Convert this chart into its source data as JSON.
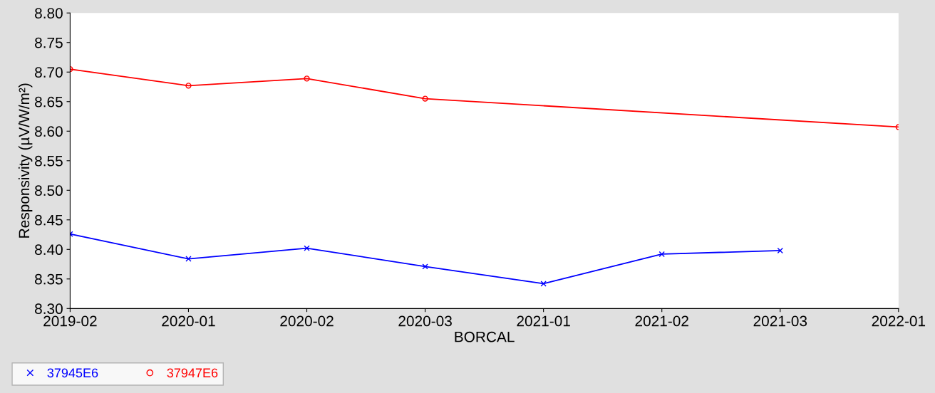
{
  "chart_data": {
    "type": "line",
    "xlabel": "BORCAL",
    "ylabel": "Responsivity (µV/W/m²)",
    "categories": [
      "2019-02",
      "2020-01",
      "2020-02",
      "2020-03",
      "2021-01",
      "2021-02",
      "2021-03",
      "2022-01"
    ],
    "series": [
      {
        "name": "37945E6",
        "color": "#0000ff",
        "marker": "cross",
        "values": [
          8.426,
          8.384,
          8.402,
          8.371,
          8.342,
          8.392,
          8.398,
          null
        ]
      },
      {
        "name": "37947E6",
        "color": "#ff0000",
        "marker": "circle",
        "values": [
          8.705,
          8.677,
          8.689,
          8.655,
          null,
          null,
          null,
          8.607
        ]
      }
    ],
    "ylim": [
      8.3,
      8.8
    ],
    "yticks": [
      {
        "value": 8.3,
        "label": "8.30"
      },
      {
        "value": 8.35,
        "label": "8.35"
      },
      {
        "value": 8.4,
        "label": "8.40"
      },
      {
        "value": 8.45,
        "label": "8.45"
      },
      {
        "value": 8.5,
        "label": "8.50"
      },
      {
        "value": 8.55,
        "label": "8.55"
      },
      {
        "value": 8.6,
        "label": "8.60"
      },
      {
        "value": 8.65,
        "label": "8.65"
      },
      {
        "value": 8.7,
        "label": "8.70"
      },
      {
        "value": 8.75,
        "label": "8.75"
      },
      {
        "value": 8.8,
        "label": "8.80"
      }
    ],
    "grid": false,
    "legend": "bottom",
    "line_style": "solid"
  }
}
